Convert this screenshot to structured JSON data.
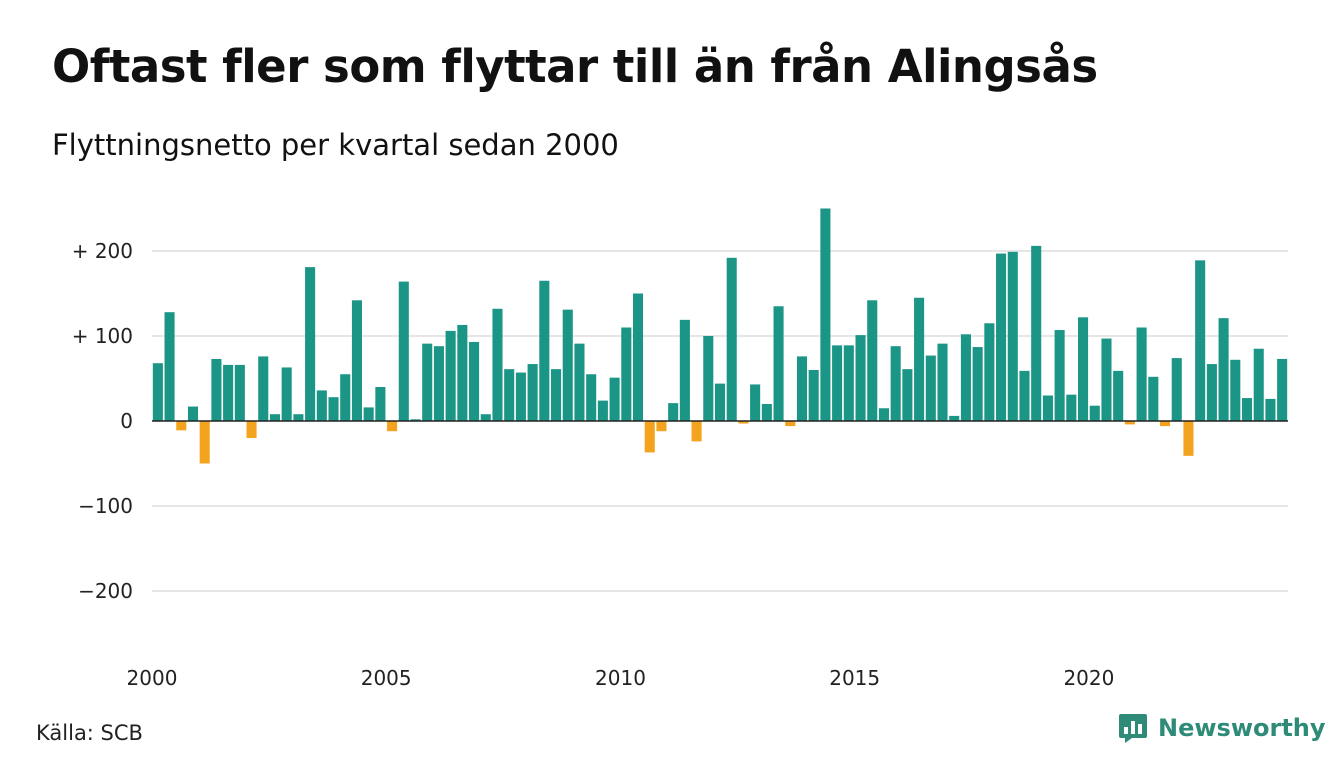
{
  "title": "Oftast fler som flyttar till än från Alingsås",
  "subtitle": "Flyttningsnetto per kvartal sedan 2000",
  "source": "Källa: SCB",
  "brand": {
    "name": "Newsworthy",
    "icon": "newsworthy-logo-icon"
  },
  "colors": {
    "positive": "#1b9585",
    "negative": "#f4a31f",
    "grid": "#dddddd",
    "zero_line": "#222222"
  },
  "chart_data": {
    "type": "bar",
    "y_ticks": [
      {
        "value": 200,
        "label": "+ 200"
      },
      {
        "value": 100,
        "label": "+ 100"
      },
      {
        "value": 0,
        "label": "0"
      },
      {
        "value": -100,
        "label": "−100"
      },
      {
        "value": -200,
        "label": "−200"
      }
    ],
    "x_ticks": [
      {
        "year": 2000,
        "label": "2000"
      },
      {
        "year": 2005,
        "label": "2005"
      },
      {
        "year": 2010,
        "label": "2010"
      },
      {
        "year": 2015,
        "label": "2015"
      },
      {
        "year": 2020,
        "label": "2020"
      }
    ],
    "ylim": [
      -200,
      250
    ],
    "start_year": 2000,
    "grid": true,
    "values": [
      68,
      128,
      -11,
      17,
      -50,
      73,
      66,
      66,
      -20,
      76,
      8,
      63,
      8,
      181,
      36,
      28,
      55,
      142,
      16,
      40,
      -12,
      164,
      2,
      91,
      88,
      106,
      113,
      93,
      8,
      132,
      61,
      57,
      67,
      165,
      61,
      131,
      91,
      55,
      24,
      51,
      110,
      150,
      -37,
      -12,
      21,
      119,
      -24,
      100,
      44,
      192,
      -3,
      43,
      20,
      135,
      -6,
      76,
      60,
      250,
      89,
      89,
      101,
      142,
      15,
      88,
      61,
      145,
      77,
      91,
      6,
      102,
      87,
      115,
      197,
      199,
      59,
      206,
      30,
      107,
      31,
      122,
      18,
      97,
      59,
      -4,
      110,
      52,
      -6,
      74,
      -41,
      189,
      67,
      121,
      72,
      27,
      85,
      26,
      73
    ]
  }
}
